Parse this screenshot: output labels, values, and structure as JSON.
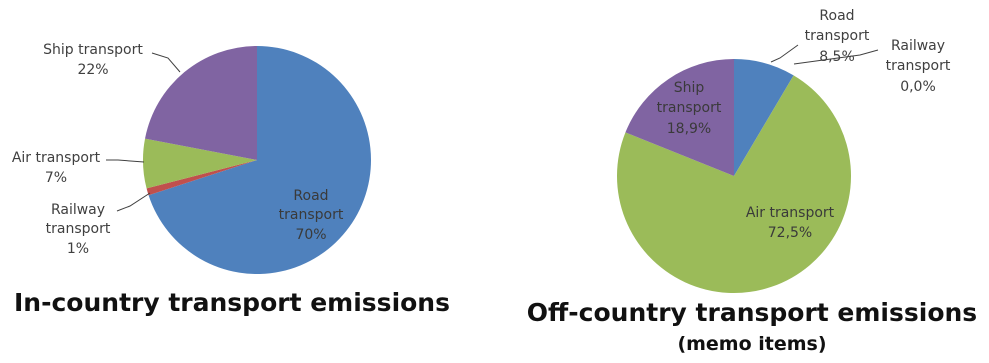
{
  "chart_data": [
    {
      "type": "pie",
      "title": "In-country transport emissions",
      "subtitle": "",
      "slices": [
        {
          "label": "Road transport",
          "value": 70,
          "value_label": "70%",
          "color": "#4F81BD"
        },
        {
          "label": "Railway transport",
          "value": 1,
          "value_label": "1%",
          "color": "#C0504D"
        },
        {
          "label": "Air transport",
          "value": 7,
          "value_label": "7%",
          "color": "#9BBB59"
        },
        {
          "label": "Ship transport",
          "value": 22,
          "value_label": "22%",
          "color": "#8064A2"
        }
      ]
    },
    {
      "type": "pie",
      "title": "Off-country transport emissions",
      "subtitle": "(memo items)",
      "slices": [
        {
          "label": "Road transport",
          "value": 8.5,
          "value_label": "8,5%",
          "color": "#4F81BD"
        },
        {
          "label": "Railway transport",
          "value": 0.0,
          "value_label": "0,0%",
          "color": "#C0504D"
        },
        {
          "label": "Air transport",
          "value": 72.5,
          "value_label": "72,5%",
          "color": "#9BBB59"
        },
        {
          "label": "Ship transport",
          "value": 18.9,
          "value_label": "18,9%",
          "color": "#8064A2"
        }
      ]
    }
  ]
}
